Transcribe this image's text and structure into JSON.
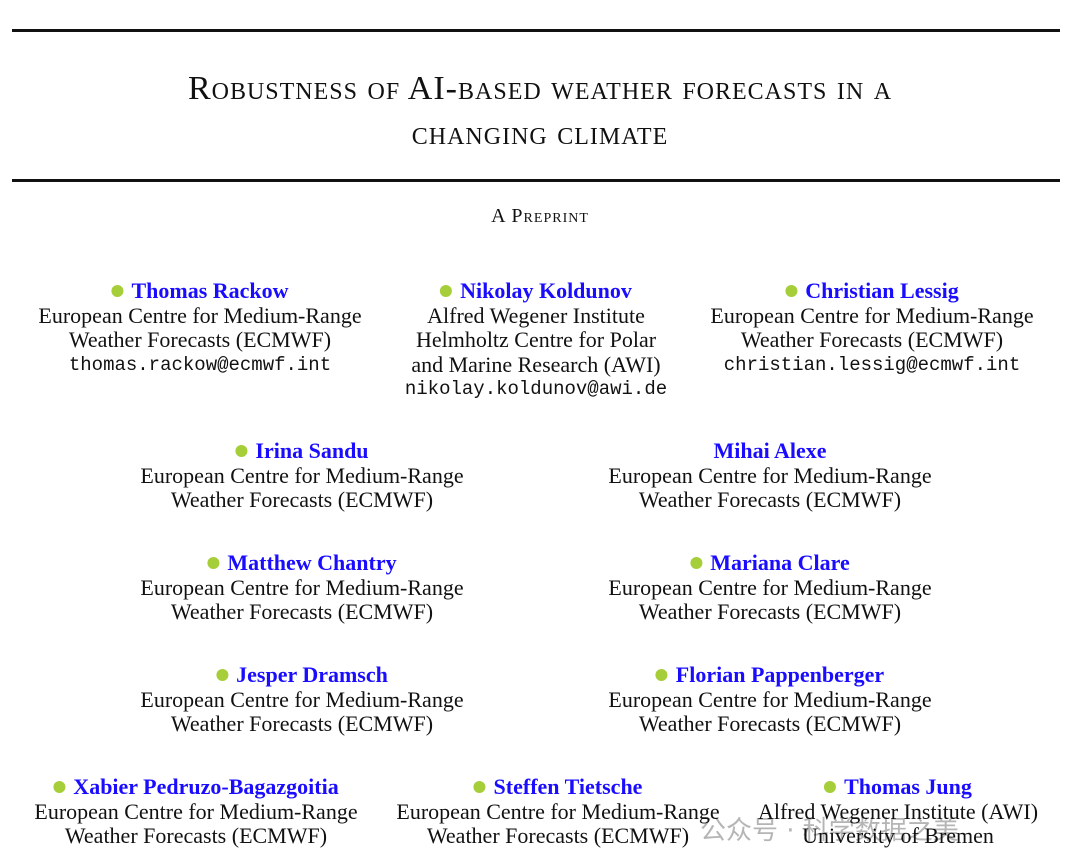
{
  "header": {
    "title_lines": [
      "Robustness of AI-based weather forecasts in a",
      "changing climate"
    ],
    "subtitle": "A Preprint"
  },
  "authors": [
    [
      {
        "name": "Thomas Rackow",
        "orcid": true,
        "lines": [
          "European Centre for Medium-Range",
          "Weather Forecasts (ECMWF)"
        ],
        "email": "thomas.rackow@ecmwf.int"
      },
      {
        "name": "Nikolay Koldunov",
        "orcid": true,
        "lines": [
          "Alfred Wegener Institute",
          "Helmholtz Centre for Polar",
          "and Marine Research (AWI)"
        ],
        "email": "nikolay.koldunov@awi.de"
      },
      {
        "name": "Christian Lessig",
        "orcid": true,
        "lines": [
          "European Centre for Medium-Range",
          "Weather Forecasts (ECMWF)"
        ],
        "email": "christian.lessig@ecmwf.int"
      }
    ],
    [
      {
        "name": "Irina Sandu",
        "orcid": true,
        "lines": [
          "European Centre for Medium-Range",
          "Weather Forecasts (ECMWF)"
        ]
      },
      {
        "name": "Mihai Alexe",
        "orcid": false,
        "lines": [
          "European Centre for Medium-Range",
          "Weather Forecasts (ECMWF)"
        ]
      }
    ],
    [
      {
        "name": "Matthew Chantry",
        "orcid": true,
        "lines": [
          "European Centre for Medium-Range",
          "Weather Forecasts (ECMWF)"
        ]
      },
      {
        "name": "Mariana Clare",
        "orcid": true,
        "lines": [
          "European Centre for Medium-Range",
          "Weather Forecasts (ECMWF)"
        ]
      }
    ],
    [
      {
        "name": "Jesper Dramsch",
        "orcid": true,
        "lines": [
          "European Centre for Medium-Range",
          "Weather Forecasts (ECMWF)"
        ]
      },
      {
        "name": "Florian Pappenberger",
        "orcid": true,
        "lines": [
          "European Centre for Medium-Range",
          "Weather Forecasts (ECMWF)"
        ]
      }
    ],
    [
      {
        "name": "Xabier Pedruzo-Bagazgoitia",
        "orcid": true,
        "lines": [
          "European Centre for Medium-Range",
          "Weather Forecasts (ECMWF)"
        ]
      },
      {
        "name": "Steffen Tietsche",
        "orcid": true,
        "lines": [
          "European Centre for Medium-Range",
          "Weather Forecasts (ECMWF)"
        ]
      },
      {
        "name": "Thomas Jung",
        "orcid": true,
        "lines": [
          "Alfred Wegener Institute (AWI)",
          "University of Bremen"
        ]
      }
    ]
  ],
  "watermark": "公众号 · 科学数据之美"
}
